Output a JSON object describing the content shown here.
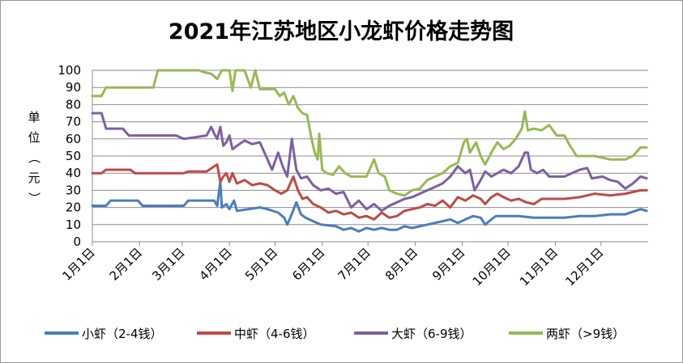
{
  "chart_data": {
    "type": "line",
    "title": "2021年江苏地区小龙虾价格走势图",
    "ylabel": "单位（元）",
    "ylabel_chars": [
      "单",
      "位",
      "（",
      "元",
      "）"
    ],
    "ylim": [
      0,
      100
    ],
    "yticks": [
      "0",
      "10",
      "20",
      "30",
      "40",
      "50",
      "60",
      "70",
      "80",
      "90",
      "100"
    ],
    "xticks": [
      "1月1日",
      "2月1日",
      "3月1日",
      "4月1日",
      "5月1日",
      "6月1日",
      "7月1日",
      "8月1日",
      "9月1日",
      "10月1日",
      "11月1日",
      "12月1日"
    ],
    "grid": "horizontal",
    "legend_position": "bottom",
    "series": [
      {
        "name": "小虾（2-4钱）",
        "color": "#4a7ebb",
        "points": [
          [
            0,
            21
          ],
          [
            9,
            21
          ],
          [
            12,
            24
          ],
          [
            30,
            24
          ],
          [
            33,
            21
          ],
          [
            60,
            21
          ],
          [
            63,
            24
          ],
          [
            80,
            24
          ],
          [
            82,
            21
          ],
          [
            84,
            35
          ],
          [
            85,
            20
          ],
          [
            88,
            22
          ],
          [
            90,
            19
          ],
          [
            93,
            24
          ],
          [
            95,
            18
          ],
          [
            110,
            20
          ],
          [
            115,
            19
          ],
          [
            122,
            17
          ],
          [
            126,
            14
          ],
          [
            128,
            10
          ],
          [
            130,
            14
          ],
          [
            134,
            23
          ],
          [
            137,
            16
          ],
          [
            140,
            14
          ],
          [
            145,
            12
          ],
          [
            150,
            10
          ],
          [
            160,
            9
          ],
          [
            165,
            7
          ],
          [
            170,
            8
          ],
          [
            175,
            6
          ],
          [
            180,
            8
          ],
          [
            185,
            7
          ],
          [
            190,
            8
          ],
          [
            195,
            7
          ],
          [
            200,
            7
          ],
          [
            205,
            9
          ],
          [
            210,
            8
          ],
          [
            215,
            9
          ],
          [
            220,
            10
          ],
          [
            225,
            11
          ],
          [
            230,
            12
          ],
          [
            235,
            13
          ],
          [
            240,
            11
          ],
          [
            245,
            13
          ],
          [
            250,
            15
          ],
          [
            255,
            14
          ],
          [
            258,
            10
          ],
          [
            262,
            13
          ],
          [
            265,
            15
          ],
          [
            270,
            15
          ],
          [
            280,
            15
          ],
          [
            290,
            14
          ],
          [
            300,
            14
          ],
          [
            310,
            14
          ],
          [
            320,
            15
          ],
          [
            330,
            15
          ],
          [
            340,
            16
          ],
          [
            350,
            16
          ],
          [
            360,
            19
          ],
          [
            364,
            18
          ]
        ]
      },
      {
        "name": "中虾（4-6钱）",
        "color": "#be4b48",
        "points": [
          [
            0,
            40
          ],
          [
            6,
            40
          ],
          [
            9,
            42
          ],
          [
            25,
            42
          ],
          [
            28,
            40
          ],
          [
            60,
            40
          ],
          [
            63,
            41
          ],
          [
            75,
            41
          ],
          [
            80,
            44
          ],
          [
            82,
            45
          ],
          [
            84,
            35
          ],
          [
            86,
            38
          ],
          [
            88,
            40
          ],
          [
            90,
            35
          ],
          [
            92,
            40
          ],
          [
            95,
            34
          ],
          [
            100,
            36
          ],
          [
            105,
            33
          ],
          [
            110,
            34
          ],
          [
            115,
            33
          ],
          [
            120,
            30
          ],
          [
            124,
            28
          ],
          [
            128,
            30
          ],
          [
            132,
            38
          ],
          [
            135,
            30
          ],
          [
            138,
            25
          ],
          [
            141,
            26
          ],
          [
            145,
            22
          ],
          [
            150,
            20
          ],
          [
            155,
            17
          ],
          [
            160,
            18
          ],
          [
            165,
            16
          ],
          [
            170,
            17
          ],
          [
            175,
            14
          ],
          [
            180,
            15
          ],
          [
            185,
            13
          ],
          [
            190,
            17
          ],
          [
            195,
            14
          ],
          [
            200,
            15
          ],
          [
            205,
            18
          ],
          [
            210,
            19
          ],
          [
            215,
            20
          ],
          [
            220,
            22
          ],
          [
            225,
            21
          ],
          [
            230,
            24
          ],
          [
            235,
            20
          ],
          [
            240,
            26
          ],
          [
            245,
            24
          ],
          [
            250,
            27
          ],
          [
            255,
            25
          ],
          [
            258,
            22
          ],
          [
            262,
            26
          ],
          [
            266,
            28
          ],
          [
            270,
            26
          ],
          [
            275,
            24
          ],
          [
            280,
            25
          ],
          [
            285,
            23
          ],
          [
            290,
            22
          ],
          [
            295,
            25
          ],
          [
            300,
            25
          ],
          [
            310,
            25
          ],
          [
            320,
            26
          ],
          [
            330,
            28
          ],
          [
            340,
            27
          ],
          [
            350,
            28
          ],
          [
            355,
            29
          ],
          [
            360,
            30
          ],
          [
            364,
            30
          ]
        ]
      },
      {
        "name": "大虾（6-9钱）",
        "color": "#7d60a0",
        "points": [
          [
            0,
            75
          ],
          [
            6,
            75
          ],
          [
            9,
            66
          ],
          [
            20,
            66
          ],
          [
            24,
            62
          ],
          [
            55,
            62
          ],
          [
            60,
            60
          ],
          [
            75,
            62
          ],
          [
            78,
            67
          ],
          [
            80,
            63
          ],
          [
            82,
            60
          ],
          [
            84,
            67
          ],
          [
            86,
            56
          ],
          [
            88,
            58
          ],
          [
            90,
            62
          ],
          [
            92,
            54
          ],
          [
            95,
            56
          ],
          [
            100,
            59
          ],
          [
            105,
            57
          ],
          [
            110,
            58
          ],
          [
            114,
            50
          ],
          [
            118,
            42
          ],
          [
            122,
            52
          ],
          [
            125,
            44
          ],
          [
            128,
            38
          ],
          [
            131,
            60
          ],
          [
            134,
            42
          ],
          [
            137,
            37
          ],
          [
            141,
            38
          ],
          [
            145,
            33
          ],
          [
            150,
            30
          ],
          [
            155,
            31
          ],
          [
            160,
            28
          ],
          [
            165,
            29
          ],
          [
            170,
            20
          ],
          [
            175,
            24
          ],
          [
            180,
            19
          ],
          [
            185,
            22
          ],
          [
            190,
            18
          ],
          [
            195,
            21
          ],
          [
            200,
            23
          ],
          [
            205,
            25
          ],
          [
            210,
            26
          ],
          [
            215,
            28
          ],
          [
            220,
            30
          ],
          [
            225,
            32
          ],
          [
            230,
            34
          ],
          [
            235,
            38
          ],
          [
            240,
            44
          ],
          [
            245,
            40
          ],
          [
            248,
            42
          ],
          [
            251,
            30
          ],
          [
            255,
            36
          ],
          [
            258,
            41
          ],
          [
            262,
            38
          ],
          [
            266,
            40
          ],
          [
            270,
            42
          ],
          [
            275,
            40
          ],
          [
            280,
            44
          ],
          [
            284,
            52
          ],
          [
            286,
            52
          ],
          [
            288,
            42
          ],
          [
            292,
            40
          ],
          [
            296,
            42
          ],
          [
            300,
            38
          ],
          [
            310,
            38
          ],
          [
            320,
            42
          ],
          [
            325,
            43
          ],
          [
            328,
            37
          ],
          [
            335,
            38
          ],
          [
            340,
            36
          ],
          [
            345,
            35
          ],
          [
            350,
            31
          ],
          [
            355,
            34
          ],
          [
            360,
            38
          ],
          [
            364,
            37
          ]
        ]
      },
      {
        "name": "两虾（>9钱）",
        "color": "#98b954",
        "points": [
          [
            0,
            85
          ],
          [
            6,
            85
          ],
          [
            9,
            90
          ],
          [
            40,
            90
          ],
          [
            43,
            100
          ],
          [
            70,
            100
          ],
          [
            73,
            99
          ],
          [
            78,
            98
          ],
          [
            82,
            95
          ],
          [
            85,
            100
          ],
          [
            90,
            100
          ],
          [
            92,
            88
          ],
          [
            94,
            100
          ],
          [
            100,
            100
          ],
          [
            104,
            90
          ],
          [
            107,
            100
          ],
          [
            110,
            89
          ],
          [
            120,
            89
          ],
          [
            123,
            85
          ],
          [
            126,
            87
          ],
          [
            129,
            80
          ],
          [
            132,
            85
          ],
          [
            135,
            78
          ],
          [
            138,
            75
          ],
          [
            141,
            74
          ],
          [
            144,
            60
          ],
          [
            146,
            52
          ],
          [
            148,
            48
          ],
          [
            149,
            63
          ],
          [
            151,
            42
          ],
          [
            154,
            40
          ],
          [
            158,
            39
          ],
          [
            162,
            44
          ],
          [
            166,
            40
          ],
          [
            170,
            38
          ],
          [
            180,
            38
          ],
          [
            185,
            48
          ],
          [
            188,
            40
          ],
          [
            192,
            38
          ],
          [
            195,
            30
          ],
          [
            200,
            28
          ],
          [
            205,
            27
          ],
          [
            210,
            30
          ],
          [
            215,
            31
          ],
          [
            220,
            36
          ],
          [
            225,
            38
          ],
          [
            230,
            40
          ],
          [
            235,
            44
          ],
          [
            240,
            46
          ],
          [
            244,
            58
          ],
          [
            246,
            60
          ],
          [
            248,
            52
          ],
          [
            252,
            58
          ],
          [
            255,
            50
          ],
          [
            258,
            45
          ],
          [
            262,
            52
          ],
          [
            266,
            58
          ],
          [
            270,
            54
          ],
          [
            274,
            56
          ],
          [
            278,
            60
          ],
          [
            282,
            66
          ],
          [
            284,
            76
          ],
          [
            286,
            65
          ],
          [
            290,
            66
          ],
          [
            295,
            65
          ],
          [
            300,
            68
          ],
          [
            305,
            62
          ],
          [
            310,
            62
          ],
          [
            313,
            57
          ],
          [
            318,
            50
          ],
          [
            330,
            50
          ],
          [
            340,
            48
          ],
          [
            350,
            48
          ],
          [
            355,
            50
          ],
          [
            360,
            55
          ],
          [
            364,
            55
          ]
        ]
      }
    ]
  }
}
